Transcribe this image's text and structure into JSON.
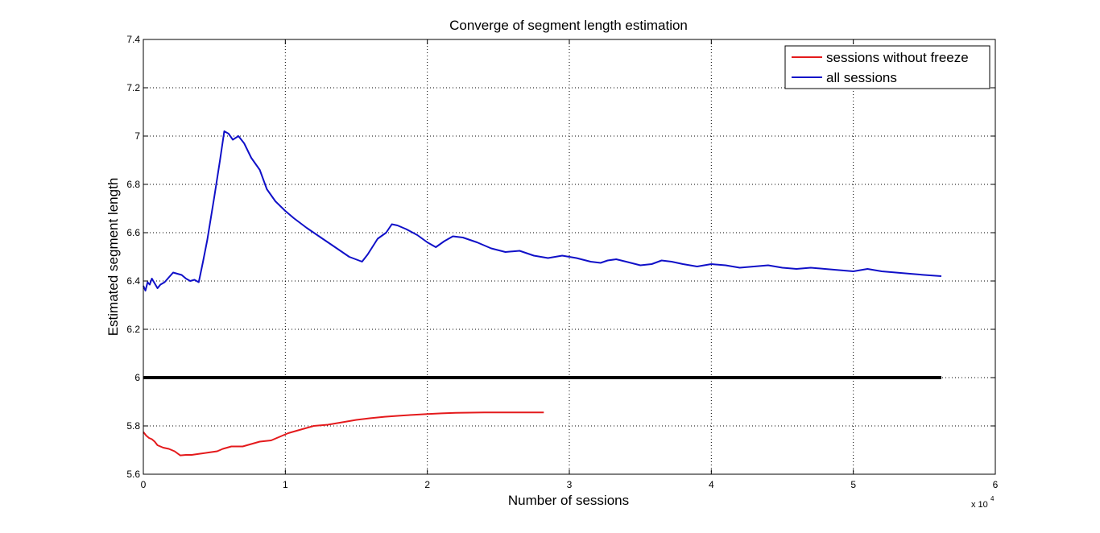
{
  "chart_data": {
    "type": "line",
    "title": "Converge of segment length estimation",
    "xlabel": "Number of sessions",
    "ylabel": "Estimated segment length",
    "x_multiplier_label": "x 10",
    "x_multiplier_exponent": "4",
    "xlim": [
      0,
      60000
    ],
    "ylim": [
      5.6,
      7.4
    ],
    "x_ticks": [
      0,
      10000,
      20000,
      30000,
      40000,
      50000,
      60000
    ],
    "x_tick_labels": [
      "0",
      "1",
      "2",
      "3",
      "4",
      "5",
      "6"
    ],
    "y_ticks": [
      5.6,
      5.8,
      6.0,
      6.2,
      6.4,
      6.6,
      6.8,
      7.0,
      7.2,
      7.4
    ],
    "y_tick_labels": [
      "5.6",
      "5.8",
      "6",
      "6.2",
      "6.4",
      "6.6",
      "6.8",
      "7",
      "7.2",
      "7.4"
    ],
    "grid": true,
    "grid_style": "dotted",
    "legend_position": "top-right",
    "series": [
      {
        "name": "sessions without freeze",
        "color": "#e41a1c",
        "in_legend": true,
        "points": [
          [
            0,
            5.775
          ],
          [
            200,
            5.76
          ],
          [
            400,
            5.75
          ],
          [
            600,
            5.745
          ],
          [
            800,
            5.735
          ],
          [
            1000,
            5.72
          ],
          [
            1400,
            5.71
          ],
          [
            1800,
            5.705
          ],
          [
            2200,
            5.695
          ],
          [
            2600,
            5.678
          ],
          [
            3000,
            5.68
          ],
          [
            3400,
            5.68
          ],
          [
            4000,
            5.685
          ],
          [
            4600,
            5.69
          ],
          [
            5200,
            5.695
          ],
          [
            5600,
            5.705
          ],
          [
            6200,
            5.715
          ],
          [
            7000,
            5.715
          ],
          [
            7600,
            5.725
          ],
          [
            8200,
            5.735
          ],
          [
            9000,
            5.74
          ],
          [
            9600,
            5.755
          ],
          [
            10200,
            5.77
          ],
          [
            10800,
            5.78
          ],
          [
            11400,
            5.79
          ],
          [
            12000,
            5.8
          ],
          [
            13000,
            5.805
          ],
          [
            14000,
            5.815
          ],
          [
            15000,
            5.825
          ],
          [
            16000,
            5.832
          ],
          [
            17000,
            5.838
          ],
          [
            18000,
            5.842
          ],
          [
            19000,
            5.846
          ],
          [
            20000,
            5.849
          ],
          [
            21000,
            5.852
          ],
          [
            22000,
            5.854
          ],
          [
            23000,
            5.855
          ],
          [
            24000,
            5.856
          ],
          [
            25000,
            5.856
          ],
          [
            26000,
            5.856
          ],
          [
            27000,
            5.856
          ],
          [
            28200,
            5.856
          ]
        ]
      },
      {
        "name": "all sessions",
        "color": "#1010c8",
        "in_legend": true,
        "points": [
          [
            0,
            6.38
          ],
          [
            150,
            6.36
          ],
          [
            300,
            6.395
          ],
          [
            450,
            6.385
          ],
          [
            600,
            6.41
          ],
          [
            800,
            6.39
          ],
          [
            1000,
            6.37
          ],
          [
            1200,
            6.385
          ],
          [
            1500,
            6.395
          ],
          [
            1800,
            6.415
          ],
          [
            2100,
            6.435
          ],
          [
            2400,
            6.43
          ],
          [
            2700,
            6.425
          ],
          [
            3000,
            6.41
          ],
          [
            3300,
            6.4
          ],
          [
            3600,
            6.405
          ],
          [
            3900,
            6.395
          ],
          [
            4200,
            6.48
          ],
          [
            4500,
            6.57
          ],
          [
            5000,
            6.75
          ],
          [
            5400,
            6.9
          ],
          [
            5700,
            7.02
          ],
          [
            6000,
            7.01
          ],
          [
            6300,
            6.985
          ],
          [
            6700,
            7.0
          ],
          [
            7100,
            6.97
          ],
          [
            7600,
            6.91
          ],
          [
            8200,
            6.86
          ],
          [
            8700,
            6.78
          ],
          [
            9300,
            6.73
          ],
          [
            10000,
            6.69
          ],
          [
            10600,
            6.66
          ],
          [
            11500,
            6.62
          ],
          [
            12500,
            6.58
          ],
          [
            13500,
            6.54
          ],
          [
            14500,
            6.5
          ],
          [
            15400,
            6.48
          ],
          [
            15800,
            6.51
          ],
          [
            16500,
            6.575
          ],
          [
            17100,
            6.6
          ],
          [
            17500,
            6.635
          ],
          [
            17900,
            6.63
          ],
          [
            18500,
            6.615
          ],
          [
            19300,
            6.59
          ],
          [
            20000,
            6.56
          ],
          [
            20600,
            6.54
          ],
          [
            21200,
            6.565
          ],
          [
            21800,
            6.585
          ],
          [
            22500,
            6.58
          ],
          [
            23500,
            6.56
          ],
          [
            24500,
            6.535
          ],
          [
            25500,
            6.52
          ],
          [
            26500,
            6.525
          ],
          [
            27500,
            6.505
          ],
          [
            28500,
            6.495
          ],
          [
            29500,
            6.505
          ],
          [
            30500,
            6.495
          ],
          [
            31500,
            6.48
          ],
          [
            32200,
            6.475
          ],
          [
            32700,
            6.485
          ],
          [
            33300,
            6.49
          ],
          [
            34000,
            6.48
          ],
          [
            35000,
            6.465
          ],
          [
            35800,
            6.47
          ],
          [
            36500,
            6.485
          ],
          [
            37200,
            6.48
          ],
          [
            38000,
            6.47
          ],
          [
            39000,
            6.46
          ],
          [
            40000,
            6.47
          ],
          [
            41000,
            6.465
          ],
          [
            42000,
            6.455
          ],
          [
            43000,
            6.46
          ],
          [
            44000,
            6.465
          ],
          [
            45000,
            6.455
          ],
          [
            46000,
            6.45
          ],
          [
            47000,
            6.455
          ],
          [
            48000,
            6.45
          ],
          [
            49000,
            6.445
          ],
          [
            50000,
            6.44
          ],
          [
            51000,
            6.45
          ],
          [
            52000,
            6.44
          ],
          [
            53000,
            6.435
          ],
          [
            54000,
            6.43
          ],
          [
            55000,
            6.425
          ],
          [
            56200,
            6.42
          ]
        ]
      },
      {
        "name": "",
        "color": "#000000",
        "in_legend": false,
        "points": [
          [
            0,
            6.0
          ],
          [
            56200,
            6.0
          ]
        ]
      }
    ]
  }
}
